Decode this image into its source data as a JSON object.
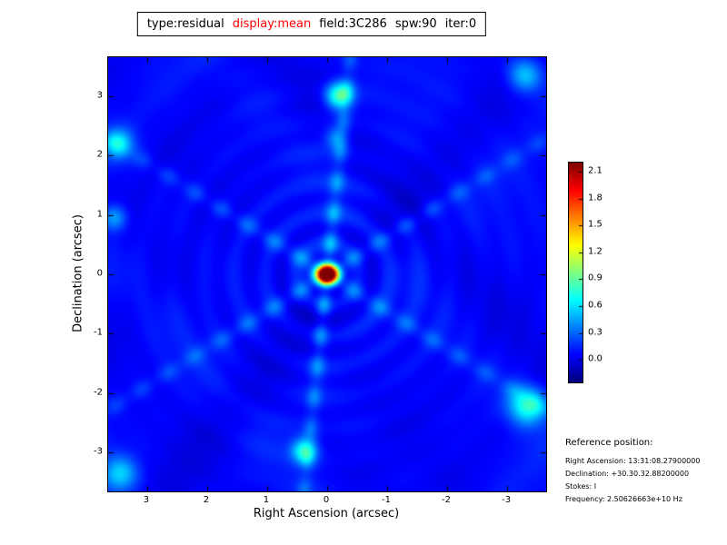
{
  "title": {
    "segments": [
      {
        "text": "type:residual",
        "color": "#000000"
      },
      {
        "text": "display:mean",
        "color": "#ff0000"
      },
      {
        "text": "field:3C286",
        "color": "#000000"
      },
      {
        "text": "spw:90",
        "color": "#000000"
      },
      {
        "text": "iter:0",
        "color": "#000000"
      }
    ]
  },
  "chart_data": {
    "type": "heatmap",
    "title": "type:residual display:mean field:3C286 spw:90 iter:0",
    "xlabel": "Right Ascension (arcsec)",
    "ylabel": "Declination (arcsec)",
    "x_range": [
      3.65,
      -3.65
    ],
    "y_range": [
      -3.65,
      3.65
    ],
    "x_ticks": [
      3,
      2,
      1,
      0,
      -1,
      -2,
      -3
    ],
    "y_ticks": [
      3,
      2,
      1,
      0,
      -1,
      -2,
      -3
    ],
    "colormap": "jet",
    "vmin": -0.25,
    "vmax": 2.2,
    "colorbar_ticks": [
      2.1,
      1.8,
      1.5,
      1.2,
      0.9,
      0.6,
      0.3,
      0.0
    ],
    "description": "Interferometric residual image: bright central point source at (0,0) arcsec peaking near 2.2 on a blue background, with six-armed beaded sidelobe spikes (one near-vertical line and two diagonals at ~32 deg) plus concentric ripples and scattered cyan blobs near the field edges.",
    "model": {
      "base": 0.06,
      "texture": [
        {
          "amp": 0.05,
          "fx": 1.7,
          "fy": 1.4,
          "px": 0.8,
          "py": -0.4
        },
        {
          "amp": 0.04,
          "fx": 2.6,
          "fy": 2.2,
          "px": -1.2,
          "py": 2.0
        },
        {
          "amp": 0.03,
          "fx": 3.9,
          "fy": 3.3,
          "px": 0.5,
          "py": 1.1
        }
      ],
      "rings": {
        "amp": 0.12,
        "period": 0.52,
        "decay": 1.5
      },
      "peak": {
        "x": 0,
        "y": 0,
        "amp": 2.25,
        "sigma_x": 0.14,
        "sigma_y": 0.11
      },
      "arms": [
        {
          "angle_deg": 96,
          "amp": 0.4,
          "width": 0.09,
          "bead_period": 0.52
        },
        {
          "angle_deg": 32,
          "amp": 0.3,
          "width": 0.1,
          "bead_period": 0.52
        },
        {
          "angle_deg": -32,
          "amp": 0.3,
          "width": 0.1,
          "bead_period": 0.52
        }
      ],
      "blobs": [
        {
          "x": -0.2,
          "y": 3.0,
          "amp": 0.8,
          "sigma": 0.16
        },
        {
          "x": 0.38,
          "y": -2.96,
          "amp": 0.65,
          "sigma": 0.15
        },
        {
          "x": -3.33,
          "y": -2.2,
          "amp": 0.7,
          "sigma": 0.22
        },
        {
          "x": 3.48,
          "y": 2.2,
          "amp": 0.5,
          "sigma": 0.18
        },
        {
          "x": -3.3,
          "y": 3.35,
          "amp": 0.5,
          "sigma": 0.2
        },
        {
          "x": 3.45,
          "y": -3.35,
          "amp": 0.45,
          "sigma": 0.2
        },
        {
          "x": 3.55,
          "y": 0.95,
          "amp": 0.4,
          "sigma": 0.15
        },
        {
          "x": -0.15,
          "y": 2.3,
          "amp": 0.35,
          "sigma": 0.13
        }
      ]
    }
  },
  "reference": {
    "heading": "Reference position:",
    "lines": [
      "Right Ascension: 13:31:08.27900000",
      "Declination: +30.30.32.88200000",
      "Stokes: I",
      "Frequency: 2.50626663e+10 Hz"
    ]
  }
}
